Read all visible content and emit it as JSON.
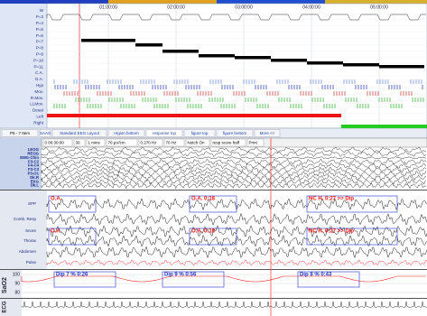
{
  "hypnogram": {
    "times": [
      "01:00:00",
      "02:00:00",
      "03:00:00",
      "04:00:00",
      "05:00:00"
    ],
    "row_labels": [
      "W",
      "P=3",
      "P=4",
      "P=5",
      "P=6",
      "P=7",
      "P=8",
      "P=9",
      "P=10",
      "P=11",
      "C.A.",
      "O.A.",
      "Hyp",
      "Mov.",
      "R.Mov.",
      "LLMov.",
      "Desat",
      "Left",
      "Right"
    ]
  },
  "toolbar": {
    "items": [
      "P5 - 7 Item",
      "SAAS",
      "Standard EEG Layout",
      "region bottom",
      "response top",
      "figure top",
      "figure bottom",
      "More <<"
    ]
  },
  "eeg": {
    "settings": [
      "0 00:30:00",
      "30",
      "1 mins",
      "70 µV/cm",
      "0.270 Hz",
      "70 Hz",
      "Notch On",
      "resp score half",
      "Print"
    ],
    "channels": [
      "LEOG",
      "REOG",
      "EMG-Chin",
      "F3-C2",
      "F4-C4",
      "F3-C3",
      "P3-O1",
      "Dk.R",
      "EKG",
      "Dk.L"
    ]
  },
  "respiratory": {
    "channels": [
      "SPP",
      "Comb. Resp",
      "Snore",
      "Thorax",
      "Abdomen",
      "Pulse"
    ],
    "events": [
      "O.A.",
      "O.A. 0:18",
      "NC H. 0:27 >> Dip",
      "O.A.",
      "O.A. 0:18",
      "NC H. 0:27 >> Dip"
    ]
  },
  "spo2": {
    "label": "SaO2",
    "ticks": [
      "100",
      "90",
      "80"
    ],
    "events": [
      "Dip 7 %  0:26",
      "Dip 9 %  0:56",
      "Dip 8 %  0:43"
    ]
  },
  "ecg": {
    "label": "ECG"
  }
}
